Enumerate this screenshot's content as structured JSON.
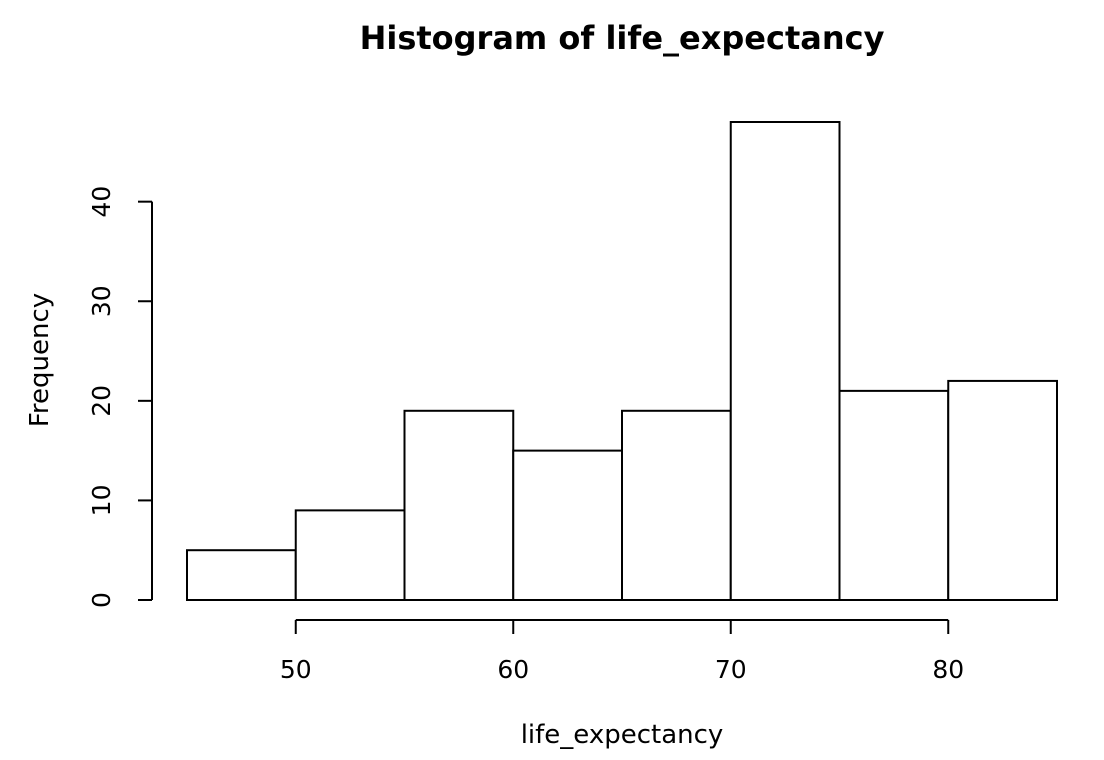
{
  "chart_data": {
    "type": "bar",
    "title": "Histogram of life_expectancy",
    "xlabel": "life_expectancy",
    "ylabel": "Frequency",
    "bins": [
      {
        "from": 45,
        "to": 50,
        "count": 5
      },
      {
        "from": 50,
        "to": 55,
        "count": 9
      },
      {
        "from": 55,
        "to": 60,
        "count": 19
      },
      {
        "from": 60,
        "to": 65,
        "count": 15
      },
      {
        "from": 65,
        "to": 70,
        "count": 19
      },
      {
        "from": 70,
        "to": 75,
        "count": 48
      },
      {
        "from": 75,
        "to": 80,
        "count": 21
      },
      {
        "from": 80,
        "to": 85,
        "count": 22
      }
    ],
    "x_ticks": [
      50,
      60,
      70,
      80
    ],
    "y_ticks": [
      0,
      10,
      20,
      30,
      40
    ],
    "xlim": [
      45,
      85
    ],
    "ylim": [
      0,
      48
    ],
    "grid": false,
    "bar_fill": "#ffffff",
    "bar_stroke": "#000000"
  }
}
